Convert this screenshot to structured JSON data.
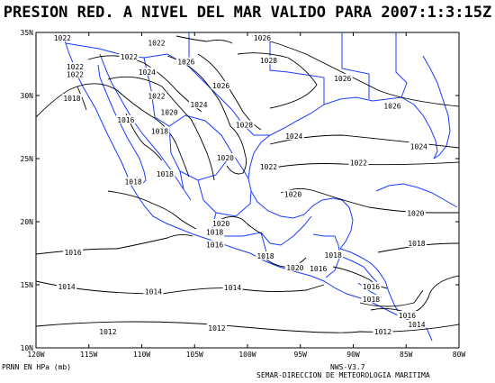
{
  "title": "PRESION RED. A NIVEL DEL MAR VALIDO PARA 2007:1:3:15Z",
  "footer": {
    "units": "PRNN EN HPa (mb)",
    "version": "NWS-V3.7",
    "agency": "SEMAR-DIRECCION DE METEOROLOGIA MARITIMA"
  },
  "map": {
    "lon_range": [
      -120,
      -80
    ],
    "lat_range": [
      10,
      35
    ],
    "lat_ticks": [
      "10N",
      "15N",
      "20N",
      "25N",
      "30N",
      "35N"
    ],
    "lon_ticks": [
      "120W",
      "115W",
      "110W",
      "105W",
      "100W",
      "95W",
      "90W",
      "85W",
      "80W"
    ],
    "coast_color": "#1a3cff",
    "contour_color": "#000000",
    "isobar_labels": [
      {
        "text": "1022",
        "lon": -117.5,
        "lat": 34.5
      },
      {
        "text": "1022",
        "lon": -111.2,
        "lat": 33.0
      },
      {
        "text": "1022",
        "lon": -116.3,
        "lat": 32.2
      },
      {
        "text": "1022",
        "lon": -116.3,
        "lat": 31.6
      },
      {
        "text": "1022",
        "lon": -108.6,
        "lat": 34.1
      },
      {
        "text": "1024",
        "lon": -109.5,
        "lat": 31.8
      },
      {
        "text": "1026",
        "lon": -105.8,
        "lat": 32.6
      },
      {
        "text": "1026",
        "lon": -98.6,
        "lat": 34.5
      },
      {
        "text": "1028",
        "lon": -98.0,
        "lat": 32.7
      },
      {
        "text": "1026",
        "lon": -102.5,
        "lat": 30.7
      },
      {
        "text": "1026",
        "lon": -91.0,
        "lat": 31.3
      },
      {
        "text": "1026",
        "lon": -86.3,
        "lat": 29.1
      },
      {
        "text": "1022",
        "lon": -108.6,
        "lat": 29.9
      },
      {
        "text": "1024",
        "lon": -104.6,
        "lat": 29.2
      },
      {
        "text": "1020",
        "lon": -107.4,
        "lat": 28.6
      },
      {
        "text": "1018",
        "lon": -116.6,
        "lat": 29.7
      },
      {
        "text": "1016",
        "lon": -111.5,
        "lat": 28.0
      },
      {
        "text": "1018",
        "lon": -108.3,
        "lat": 27.1
      },
      {
        "text": "1028",
        "lon": -100.3,
        "lat": 27.6
      },
      {
        "text": "1024",
        "lon": -95.6,
        "lat": 26.7
      },
      {
        "text": "1024",
        "lon": -83.8,
        "lat": 25.9
      },
      {
        "text": "1020",
        "lon": -102.1,
        "lat": 25.0
      },
      {
        "text": "1022",
        "lon": -98.0,
        "lat": 24.3
      },
      {
        "text": "1022",
        "lon": -89.5,
        "lat": 24.6
      },
      {
        "text": "1018",
        "lon": -107.8,
        "lat": 23.7
      },
      {
        "text": "1018",
        "lon": -110.8,
        "lat": 23.1
      },
      {
        "text": "1020",
        "lon": -95.7,
        "lat": 22.1
      },
      {
        "text": "1020",
        "lon": -84.1,
        "lat": 20.6
      },
      {
        "text": "1020",
        "lon": -102.5,
        "lat": 19.8
      },
      {
        "text": "1018",
        "lon": -103.1,
        "lat": 19.1
      },
      {
        "text": "1016",
        "lon": -103.1,
        "lat": 18.1
      },
      {
        "text": "1018",
        "lon": -84.0,
        "lat": 18.2
      },
      {
        "text": "1016",
        "lon": -116.5,
        "lat": 17.5
      },
      {
        "text": "1018",
        "lon": -98.3,
        "lat": 17.2
      },
      {
        "text": "1018",
        "lon": -91.9,
        "lat": 17.3
      },
      {
        "text": "1020",
        "lon": -95.5,
        "lat": 16.3
      },
      {
        "text": "1016",
        "lon": -93.3,
        "lat": 16.2
      },
      {
        "text": "1014",
        "lon": -117.1,
        "lat": 14.8
      },
      {
        "text": "1014",
        "lon": -108.9,
        "lat": 14.4
      },
      {
        "text": "1014",
        "lon": -101.4,
        "lat": 14.7
      },
      {
        "text": "1016",
        "lon": -88.3,
        "lat": 14.8
      },
      {
        "text": "1018",
        "lon": -88.3,
        "lat": 13.8
      },
      {
        "text": "1016",
        "lon": -84.9,
        "lat": 12.5
      },
      {
        "text": "1014",
        "lon": -84.0,
        "lat": 11.8
      },
      {
        "text": "1012",
        "lon": -113.2,
        "lat": 11.2
      },
      {
        "text": "1012",
        "lon": -102.9,
        "lat": 11.5
      },
      {
        "text": "1012",
        "lon": -87.2,
        "lat": 11.2
      }
    ]
  }
}
